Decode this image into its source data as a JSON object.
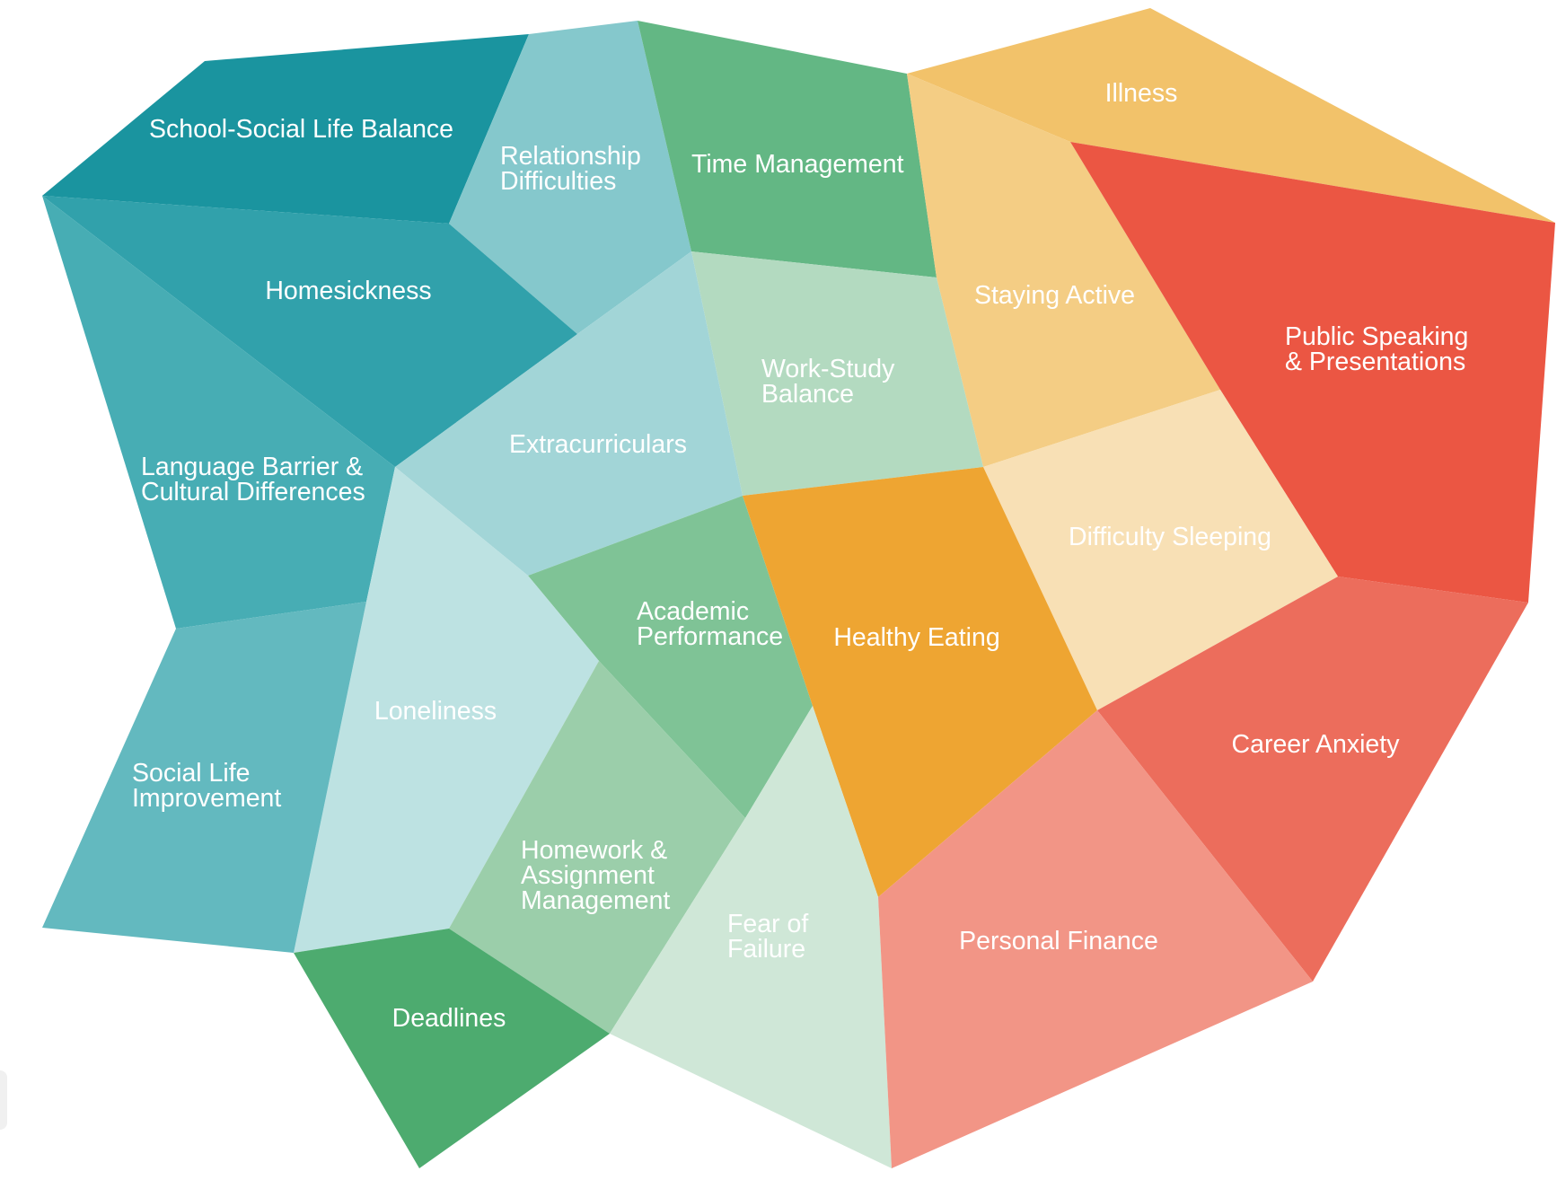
{
  "regions": [
    {
      "id": "school-social-life-balance",
      "label": [
        "School-Social Life Balance"
      ],
      "color": "#1a949f"
    },
    {
      "id": "relationship-difficulties",
      "label": [
        "Relationship",
        "Difficulties"
      ],
      "color": "#85c8cc"
    },
    {
      "id": "time-management",
      "label": [
        "Time Management"
      ],
      "color": "#63b784"
    },
    {
      "id": "illness",
      "label": [
        "Illness"
      ],
      "color": "#f2c26a"
    },
    {
      "id": "homesickness",
      "label": [
        "Homesickness"
      ],
      "color": "#31a1ab"
    },
    {
      "id": "staying-active",
      "label": [
        "Staying Active"
      ],
      "color": "#f4cd84"
    },
    {
      "id": "public-speaking",
      "label": [
        "Public Speaking",
        "& Presentations"
      ],
      "color": "#eb5643"
    },
    {
      "id": "work-study-balance",
      "label": [
        "Work-Study",
        "Balance"
      ],
      "color": "#b3dac0"
    },
    {
      "id": "extracurriculars",
      "label": [
        "Extracurriculars"
      ],
      "color": "#a2d5d7"
    },
    {
      "id": "language-barrier",
      "label": [
        "Language Barrier &",
        "Cultural Differences"
      ],
      "color": "#47adb4"
    },
    {
      "id": "difficulty-sleeping",
      "label": [
        "Difficulty Sleeping"
      ],
      "color": "#f8e0b5"
    },
    {
      "id": "academic-performance",
      "label": [
        "Academic",
        "Performance"
      ],
      "color": "#7fc396"
    },
    {
      "id": "healthy-eating",
      "label": [
        "Healthy Eating"
      ],
      "color": "#eea532"
    },
    {
      "id": "loneliness",
      "label": [
        "Loneliness"
      ],
      "color": "#bde2e2"
    },
    {
      "id": "career-anxiety",
      "label": [
        "Career Anxiety"
      ],
      "color": "#ec6d5c"
    },
    {
      "id": "social-life-improvement",
      "label": [
        "Social Life",
        "Improvement"
      ],
      "color": "#63b9bf"
    },
    {
      "id": "homework-assignment",
      "label": [
        "Homework &",
        "Assignment",
        "Management"
      ],
      "color": "#9bceaa"
    },
    {
      "id": "fear-of-failure",
      "label": [
        "Fear of",
        "Failure"
      ],
      "color": "#cfe7d7"
    },
    {
      "id": "personal-finance",
      "label": [
        "Personal Finance"
      ],
      "color": "#f29586"
    },
    {
      "id": "deadlines",
      "label": [
        "Deadlines"
      ],
      "color": "#4dab6f"
    }
  ]
}
